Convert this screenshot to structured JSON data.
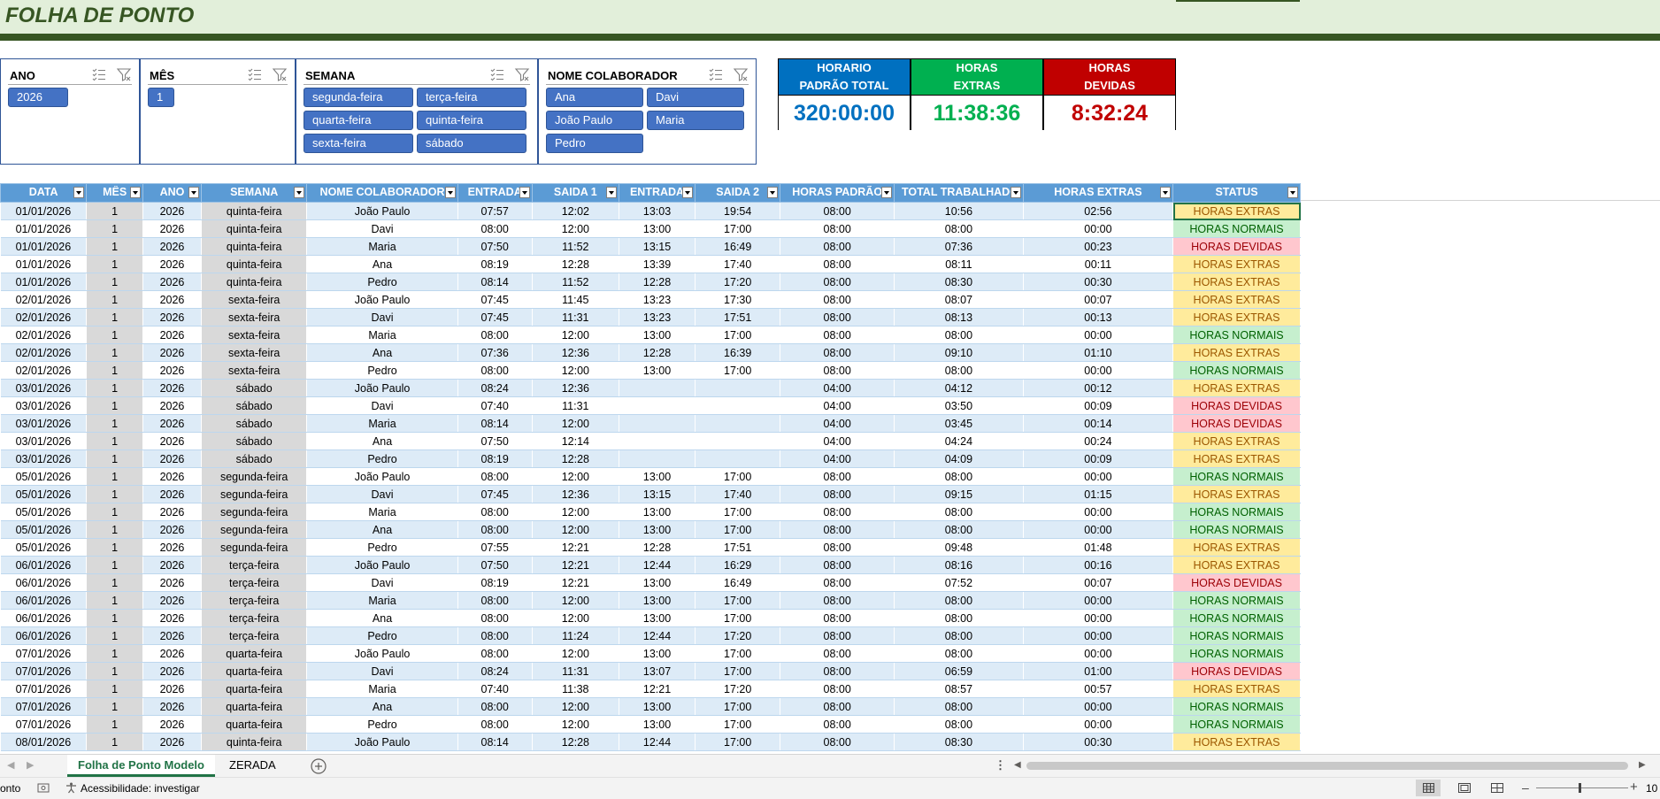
{
  "title": "FOLHA DE PONTO",
  "slicers": [
    {
      "title": "ANO",
      "items": [
        "2026"
      ]
    },
    {
      "title": "MÊS",
      "items": [
        "1"
      ]
    },
    {
      "title": "SEMANA",
      "items": [
        "segunda-feira",
        "terça-feira",
        "quarta-feira",
        "quinta-feira",
        "sexta-feira",
        "sábado"
      ]
    },
    {
      "title": "NOME COLABORADOR",
      "items": [
        "Ana",
        "Davi",
        "João Paulo",
        "Maria",
        "Pedro"
      ]
    }
  ],
  "kpis": [
    {
      "line1": "HORARIO",
      "line2": "PADRÃO TOTAL",
      "value": "320:00:00",
      "head_color": "#0070c0",
      "value_color": "#0070c0"
    },
    {
      "line1": "HORAS",
      "line2": "EXTRAS",
      "value": "11:38:36",
      "head_color": "#00b050",
      "value_color": "#00b050"
    },
    {
      "line1": "HORAS",
      "line2": "DEVIDAS",
      "value": "8:32:24",
      "head_color": "#c00000",
      "value_color": "#c00000"
    }
  ],
  "table": {
    "headers": [
      "DATA",
      "MÊS",
      "ANO",
      "SEMANA",
      "NOME COLABORADOR",
      "ENTRADA",
      "SAIDA 1",
      "ENTRADA",
      "SAIDA 2",
      "HORAS PADRÃO",
      "TOTAL TRABALHADO",
      "HORAS EXTRAS",
      "STATUS"
    ],
    "rows": [
      [
        "01/01/2026",
        "1",
        "2026",
        "quinta-feira",
        "João Paulo",
        "07:57",
        "12:02",
        "13:03",
        "19:54",
        "08:00",
        "10:56",
        "02:56",
        "HORAS EXTRAS"
      ],
      [
        "01/01/2026",
        "1",
        "2026",
        "quinta-feira",
        "Davi",
        "08:00",
        "12:00",
        "13:00",
        "17:00",
        "08:00",
        "08:00",
        "00:00",
        "HORAS NORMAIS"
      ],
      [
        "01/01/2026",
        "1",
        "2026",
        "quinta-feira",
        "Maria",
        "07:50",
        "11:52",
        "13:15",
        "16:49",
        "08:00",
        "07:36",
        "00:23",
        "HORAS DEVIDAS"
      ],
      [
        "01/01/2026",
        "1",
        "2026",
        "quinta-feira",
        "Ana",
        "08:19",
        "12:28",
        "13:39",
        "17:40",
        "08:00",
        "08:11",
        "00:11",
        "HORAS EXTRAS"
      ],
      [
        "01/01/2026",
        "1",
        "2026",
        "quinta-feira",
        "Pedro",
        "08:14",
        "11:52",
        "12:28",
        "17:20",
        "08:00",
        "08:30",
        "00:30",
        "HORAS EXTRAS"
      ],
      [
        "02/01/2026",
        "1",
        "2026",
        "sexta-feira",
        "João Paulo",
        "07:45",
        "11:45",
        "13:23",
        "17:30",
        "08:00",
        "08:07",
        "00:07",
        "HORAS EXTRAS"
      ],
      [
        "02/01/2026",
        "1",
        "2026",
        "sexta-feira",
        "Davi",
        "07:45",
        "11:31",
        "13:23",
        "17:51",
        "08:00",
        "08:13",
        "00:13",
        "HORAS EXTRAS"
      ],
      [
        "02/01/2026",
        "1",
        "2026",
        "sexta-feira",
        "Maria",
        "08:00",
        "12:00",
        "13:00",
        "17:00",
        "08:00",
        "08:00",
        "00:00",
        "HORAS NORMAIS"
      ],
      [
        "02/01/2026",
        "1",
        "2026",
        "sexta-feira",
        "Ana",
        "07:36",
        "12:36",
        "12:28",
        "16:39",
        "08:00",
        "09:10",
        "01:10",
        "HORAS EXTRAS"
      ],
      [
        "02/01/2026",
        "1",
        "2026",
        "sexta-feira",
        "Pedro",
        "08:00",
        "12:00",
        "13:00",
        "17:00",
        "08:00",
        "08:00",
        "00:00",
        "HORAS NORMAIS"
      ],
      [
        "03/01/2026",
        "1",
        "2026",
        "sábado",
        "João Paulo",
        "08:24",
        "12:36",
        "",
        "",
        "04:00",
        "04:12",
        "00:12",
        "HORAS EXTRAS"
      ],
      [
        "03/01/2026",
        "1",
        "2026",
        "sábado",
        "Davi",
        "07:40",
        "11:31",
        "",
        "",
        "04:00",
        "03:50",
        "00:09",
        "HORAS DEVIDAS"
      ],
      [
        "03/01/2026",
        "1",
        "2026",
        "sábado",
        "Maria",
        "08:14",
        "12:00",
        "",
        "",
        "04:00",
        "03:45",
        "00:14",
        "HORAS DEVIDAS"
      ],
      [
        "03/01/2026",
        "1",
        "2026",
        "sábado",
        "Ana",
        "07:50",
        "12:14",
        "",
        "",
        "04:00",
        "04:24",
        "00:24",
        "HORAS EXTRAS"
      ],
      [
        "03/01/2026",
        "1",
        "2026",
        "sábado",
        "Pedro",
        "08:19",
        "12:28",
        "",
        "",
        "04:00",
        "04:09",
        "00:09",
        "HORAS EXTRAS"
      ],
      [
        "05/01/2026",
        "1",
        "2026",
        "segunda-feira",
        "João Paulo",
        "08:00",
        "12:00",
        "13:00",
        "17:00",
        "08:00",
        "08:00",
        "00:00",
        "HORAS NORMAIS"
      ],
      [
        "05/01/2026",
        "1",
        "2026",
        "segunda-feira",
        "Davi",
        "07:45",
        "12:36",
        "13:15",
        "17:40",
        "08:00",
        "09:15",
        "01:15",
        "HORAS EXTRAS"
      ],
      [
        "05/01/2026",
        "1",
        "2026",
        "segunda-feira",
        "Maria",
        "08:00",
        "12:00",
        "13:00",
        "17:00",
        "08:00",
        "08:00",
        "00:00",
        "HORAS NORMAIS"
      ],
      [
        "05/01/2026",
        "1",
        "2026",
        "segunda-feira",
        "Ana",
        "08:00",
        "12:00",
        "13:00",
        "17:00",
        "08:00",
        "08:00",
        "00:00",
        "HORAS NORMAIS"
      ],
      [
        "05/01/2026",
        "1",
        "2026",
        "segunda-feira",
        "Pedro",
        "07:55",
        "12:21",
        "12:28",
        "17:51",
        "08:00",
        "09:48",
        "01:48",
        "HORAS EXTRAS"
      ],
      [
        "06/01/2026",
        "1",
        "2026",
        "terça-feira",
        "João Paulo",
        "07:50",
        "12:21",
        "12:44",
        "16:29",
        "08:00",
        "08:16",
        "00:16",
        "HORAS EXTRAS"
      ],
      [
        "06/01/2026",
        "1",
        "2026",
        "terça-feira",
        "Davi",
        "08:19",
        "12:21",
        "13:00",
        "16:49",
        "08:00",
        "07:52",
        "00:07",
        "HORAS DEVIDAS"
      ],
      [
        "06/01/2026",
        "1",
        "2026",
        "terça-feira",
        "Maria",
        "08:00",
        "12:00",
        "13:00",
        "17:00",
        "08:00",
        "08:00",
        "00:00",
        "HORAS NORMAIS"
      ],
      [
        "06/01/2026",
        "1",
        "2026",
        "terça-feira",
        "Ana",
        "08:00",
        "12:00",
        "13:00",
        "17:00",
        "08:00",
        "08:00",
        "00:00",
        "HORAS NORMAIS"
      ],
      [
        "06/01/2026",
        "1",
        "2026",
        "terça-feira",
        "Pedro",
        "08:00",
        "11:24",
        "12:44",
        "17:20",
        "08:00",
        "08:00",
        "00:00",
        "HORAS NORMAIS"
      ],
      [
        "07/01/2026",
        "1",
        "2026",
        "quarta-feira",
        "João Paulo",
        "08:00",
        "12:00",
        "13:00",
        "17:00",
        "08:00",
        "08:00",
        "00:00",
        "HORAS NORMAIS"
      ],
      [
        "07/01/2026",
        "1",
        "2026",
        "quarta-feira",
        "Davi",
        "08:24",
        "11:31",
        "13:07",
        "17:00",
        "08:00",
        "06:59",
        "01:00",
        "HORAS DEVIDAS"
      ],
      [
        "07/01/2026",
        "1",
        "2026",
        "quarta-feira",
        "Maria",
        "07:40",
        "11:38",
        "12:21",
        "17:20",
        "08:00",
        "08:57",
        "00:57",
        "HORAS EXTRAS"
      ],
      [
        "07/01/2026",
        "1",
        "2026",
        "quarta-feira",
        "Ana",
        "08:00",
        "12:00",
        "13:00",
        "17:00",
        "08:00",
        "08:00",
        "00:00",
        "HORAS NORMAIS"
      ],
      [
        "07/01/2026",
        "1",
        "2026",
        "quarta-feira",
        "Pedro",
        "08:00",
        "12:00",
        "13:00",
        "17:00",
        "08:00",
        "08:00",
        "00:00",
        "HORAS NORMAIS"
      ],
      [
        "08/01/2026",
        "1",
        "2026",
        "quinta-feira",
        "João Paulo",
        "08:14",
        "12:28",
        "12:44",
        "17:00",
        "08:00",
        "08:30",
        "00:30",
        "HORAS EXTRAS"
      ]
    ]
  },
  "sheet_tabs": [
    "Folha de Ponto Modelo",
    "ZERADA"
  ],
  "status": {
    "left_text": "onto",
    "accessibility": "Acessibilidade: investigar",
    "zoom": "10"
  }
}
